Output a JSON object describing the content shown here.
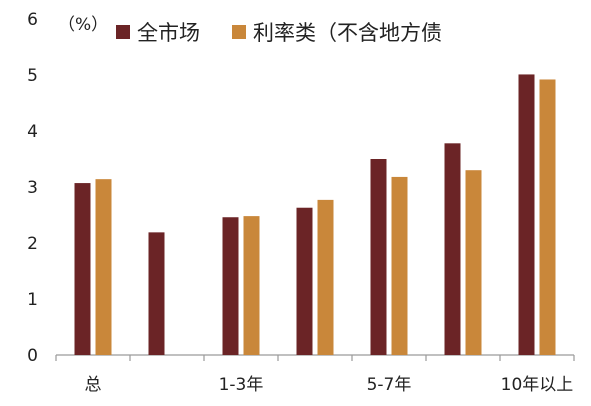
{
  "chart_data": {
    "type": "bar",
    "title": "",
    "xlabel": "",
    "ylabel": "",
    "unit_label": "（%）",
    "categories": [
      "总",
      "",
      "1-3年",
      "",
      "5-7年",
      "",
      "10年以上"
    ],
    "x_tick_labels": [
      "总",
      "",
      "1-3年",
      "",
      "5-7年",
      "",
      "10年以上"
    ],
    "y_ticks": [
      "0",
      "1",
      "2",
      "3",
      "4",
      "5",
      "6"
    ],
    "ylim": [
      0,
      6
    ],
    "grid": false,
    "legend_position": "top",
    "series": [
      {
        "name": "全市场",
        "color": "#6b2426",
        "values": [
          3.07,
          2.19,
          2.46,
          2.63,
          3.5,
          3.78,
          5.01
        ]
      },
      {
        "name": "利率类（不含地方债",
        "color": "#c9873a",
        "values": [
          3.14,
          null,
          2.48,
          2.77,
          3.18,
          3.3,
          4.92
        ]
      }
    ]
  }
}
